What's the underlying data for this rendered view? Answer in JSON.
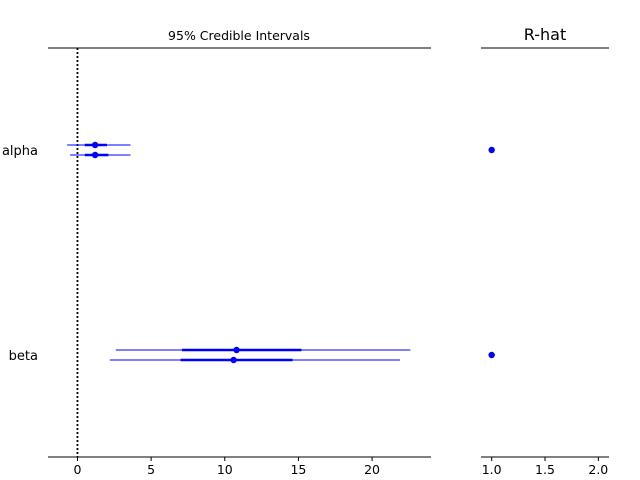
{
  "chart_data": [
    {
      "type": "forest",
      "title": "95% Credible Intervals",
      "xlim": [
        -2,
        24
      ],
      "xticks": [
        0,
        5,
        10,
        15,
        20
      ],
      "reference_line_x": 0,
      "parameters": [
        {
          "label": "alpha",
          "chains": [
            {
              "mean": 1.2,
              "hdi_50": [
                0.5,
                2.0
              ],
              "hdi_95": [
                -0.7,
                3.6
              ]
            },
            {
              "mean": 1.2,
              "hdi_50": [
                0.5,
                2.1
              ],
              "hdi_95": [
                -0.5,
                3.6
              ]
            }
          ]
        },
        {
          "label": "beta",
          "chains": [
            {
              "mean": 10.8,
              "hdi_50": [
                7.1,
                15.2
              ],
              "hdi_95": [
                2.6,
                22.6
              ]
            },
            {
              "mean": 10.6,
              "hdi_50": [
                7.0,
                14.6
              ],
              "hdi_95": [
                2.2,
                21.9
              ]
            }
          ]
        }
      ],
      "color": "#0000ff"
    },
    {
      "type": "scatter",
      "title": "R-hat",
      "xlim": [
        0.9,
        2.1
      ],
      "xticks": [
        1.0,
        1.5,
        2.0
      ],
      "xtick_labels": [
        "1.0",
        "1.5",
        "2.0"
      ],
      "points": [
        {
          "label": "alpha",
          "value": 1.0
        },
        {
          "label": "beta",
          "value": 1.0
        }
      ],
      "color": "#0000ff"
    }
  ]
}
